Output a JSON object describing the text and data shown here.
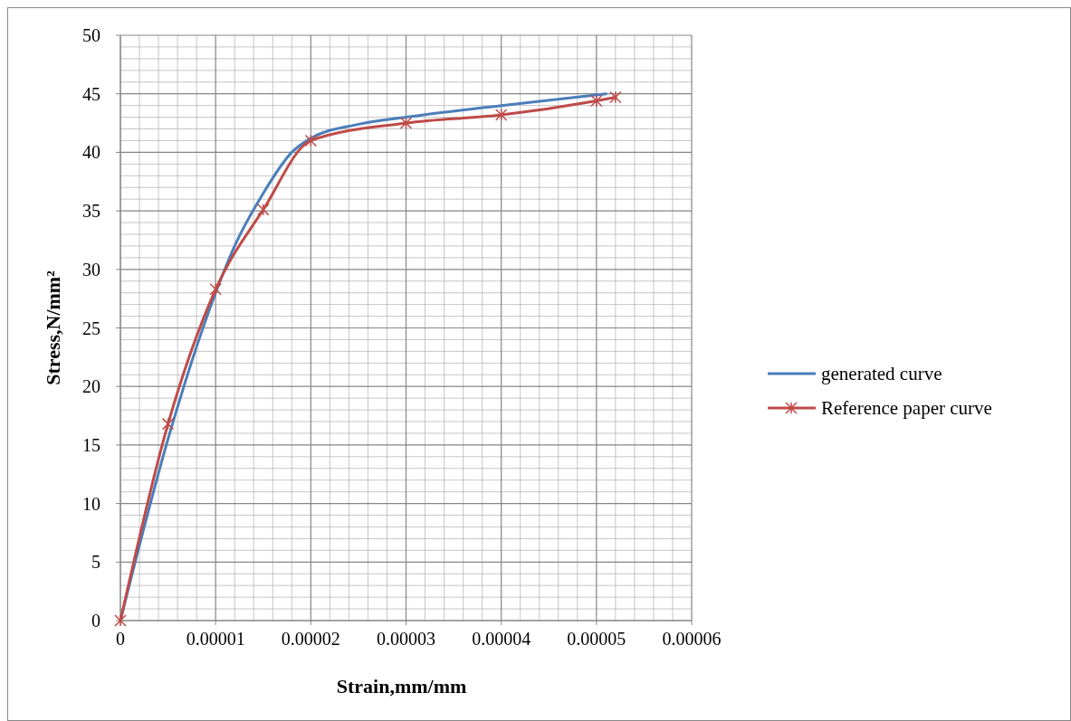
{
  "chart_data": {
    "type": "line",
    "xlabel": "Strain,mm/mm",
    "ylabel": "Stress,N/mm²",
    "xlim": [
      0,
      6e-05
    ],
    "xticks": [
      0,
      {
        "value": 1e-05,
        "label": "0.00001"
      },
      {
        "value": 2e-05,
        "label": "0.00002"
      },
      {
        "value": 3e-05,
        "label": "0.00003"
      },
      {
        "value": 4e-05,
        "label": "0.00004"
      },
      {
        "value": 5e-05,
        "label": "0.00005"
      },
      {
        "value": 6e-05,
        "label": "0.00006"
      }
    ],
    "ylim": [
      0,
      50
    ],
    "yticks": [
      0,
      5,
      10,
      15,
      20,
      25,
      30,
      35,
      40,
      45,
      50
    ],
    "grid": true,
    "legend": "right",
    "series": [
      {
        "name": "generated curve",
        "color": "#4a7ebb",
        "marker": "none",
        "x": [
          0,
          5e-06,
          1e-05,
          1.2e-05,
          1.5e-05,
          1.8e-05,
          2e-05,
          2.5e-05,
          3e-05,
          4e-05,
          5.1e-05
        ],
        "values": [
          0,
          15.5,
          28,
          32,
          36.5,
          40,
          41.2,
          42.4,
          43,
          44,
          45
        ]
      },
      {
        "name": "Reference paper curve",
        "color": "#be4b48",
        "marker": "cross",
        "x": [
          0,
          5e-06,
          1e-05,
          1.5e-05,
          2e-05,
          3e-05,
          4e-05,
          5e-05,
          5.2e-05
        ],
        "values": [
          0,
          16.8,
          28.3,
          35.1,
          41,
          42.5,
          43.2,
          44.4,
          44.7
        ]
      }
    ]
  }
}
